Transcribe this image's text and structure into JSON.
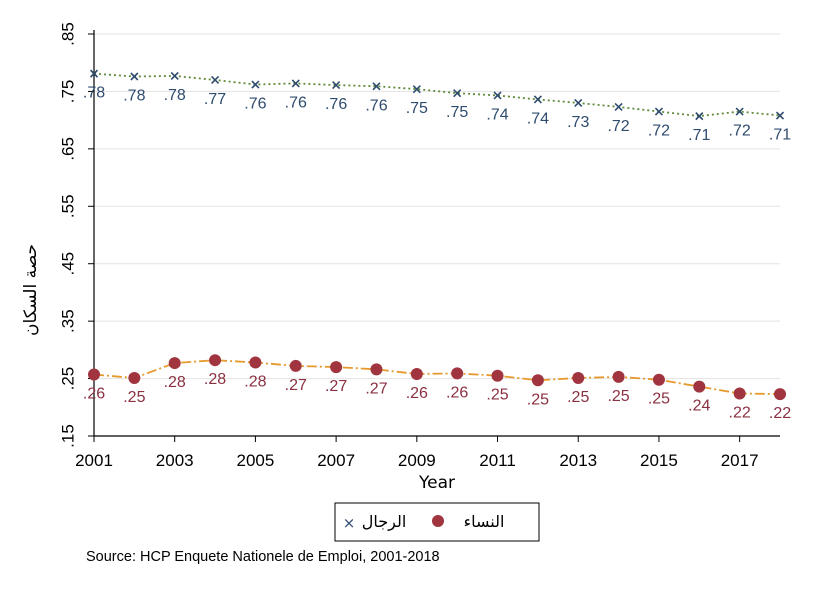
{
  "chart_data": {
    "type": "line",
    "title": "",
    "xlabel": "Year",
    "ylabel": "حصة السكان",
    "x": [
      2001,
      2002,
      2003,
      2004,
      2005,
      2006,
      2007,
      2008,
      2009,
      2010,
      2011,
      2012,
      2013,
      2014,
      2015,
      2016,
      2017,
      2018
    ],
    "xticks": [
      2001,
      2003,
      2005,
      2007,
      2009,
      2011,
      2013,
      2015,
      2017
    ],
    "xtick_labels": [
      "2001",
      "2003",
      "2005",
      "2007",
      "2009",
      "2011",
      "2013",
      "2015",
      "2017"
    ],
    "xlim": [
      2001,
      2018
    ],
    "yticks": [
      0.15,
      0.25,
      0.35,
      0.45,
      0.55,
      0.65,
      0.75,
      0.85
    ],
    "ytick_labels": [
      ".15",
      ".25",
      ".35",
      ".45",
      ".55",
      ".65",
      ".75",
      ".85"
    ],
    "ylim": [
      0.15,
      0.85
    ],
    "grid": true,
    "legend_position": "bottom",
    "series": [
      {
        "name": "الرجال",
        "marker": "x",
        "line_style": "dotted",
        "line_color": "#5f8a3a",
        "marker_color": "#2f4b6e",
        "label_color": "#2f4b6e",
        "values": [
          0.781,
          0.776,
          0.777,
          0.77,
          0.762,
          0.764,
          0.761,
          0.759,
          0.754,
          0.747,
          0.743,
          0.736,
          0.73,
          0.723,
          0.715,
          0.707,
          0.715,
          0.708
        ],
        "labels": [
          ".78",
          ".78",
          ".78",
          ".77",
          ".76",
          ".76",
          ".76",
          ".76",
          ".75",
          ".75",
          ".74",
          ".74",
          ".73",
          ".72",
          ".72",
          ".71",
          ".72",
          ".71"
        ]
      },
      {
        "name": "النساء",
        "marker": "circle",
        "line_style": "dash-dot",
        "line_color": "#e69a2e",
        "marker_color": "#a0343f",
        "label_color": "#8a3040",
        "values": [
          0.257,
          0.251,
          0.277,
          0.282,
          0.278,
          0.272,
          0.27,
          0.266,
          0.258,
          0.259,
          0.255,
          0.247,
          0.251,
          0.253,
          0.248,
          0.236,
          0.224,
          0.223
        ],
        "labels": [
          ".26",
          ".25",
          ".28",
          ".28",
          ".28",
          ".27",
          ".27",
          ".27",
          ".26",
          ".26",
          ".25",
          ".25",
          ".25",
          ".25",
          ".25",
          ".24",
          ".22",
          ".22"
        ]
      }
    ]
  },
  "colors": {
    "grid": "#e3e3e3",
    "axis": "#000000"
  },
  "source": "Source: HCP Enquete Nationele de Emploi, 2001-2018"
}
